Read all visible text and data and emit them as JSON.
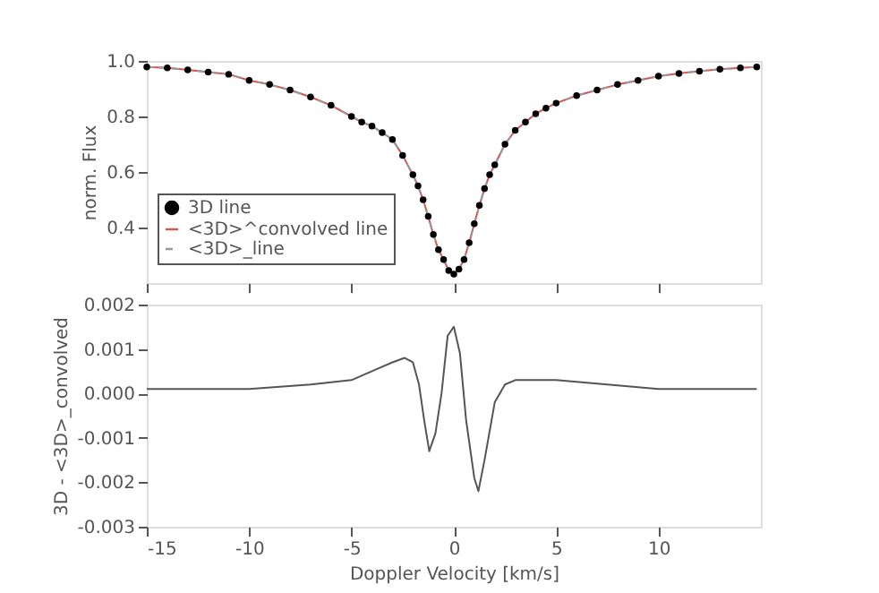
{
  "chart_data": [
    {
      "type": "line",
      "ylabel": "norm. Flux",
      "xlim": [
        -15,
        15
      ],
      "xticks": [
        -15,
        -10,
        -5,
        0,
        5,
        10
      ],
      "ylim": [
        0.2,
        1.0
      ],
      "yticks": [
        0.4,
        0.6,
        0.8,
        {
          "value": 1,
          "label": "1.0"
        }
      ],
      "tick_labels": "y",
      "grid": false,
      "legend": "bottom left",
      "x": [
        -15,
        -14,
        -13,
        -12,
        -11,
        -10,
        -9,
        -8,
        -7,
        -6,
        -5,
        -4.5,
        -4,
        -3.5,
        -3,
        -2.5,
        -2,
        -1.75,
        -1.5,
        -1.25,
        -1,
        -0.75,
        -0.5,
        -0.25,
        0,
        0.25,
        0.5,
        0.75,
        1,
        1.25,
        1.5,
        1.75,
        2,
        2.5,
        3,
        3.5,
        4,
        4.5,
        5,
        6,
        7,
        8,
        9,
        10,
        11,
        12,
        13,
        14,
        14.8
      ],
      "series": [
        {
          "name": "3D line",
          "type": "scatter",
          "marker": "circle",
          "color": "#000000",
          "values": [
            0.978,
            0.975,
            0.968,
            0.96,
            0.952,
            0.93,
            0.915,
            0.895,
            0.87,
            0.84,
            0.8,
            0.78,
            0.765,
            0.742,
            0.717,
            0.66,
            0.59,
            0.55,
            0.5,
            0.44,
            0.375,
            0.32,
            0.285,
            0.245,
            0.232,
            0.25,
            0.285,
            0.345,
            0.414,
            0.48,
            0.54,
            0.59,
            0.626,
            0.7,
            0.75,
            0.78,
            0.81,
            0.83,
            0.848,
            0.875,
            0.895,
            0.915,
            0.93,
            0.945,
            0.955,
            0.963,
            0.97,
            0.975,
            0.978
          ]
        },
        {
          "name": "<3D>^convolved line",
          "type": "line",
          "line_style": "solid",
          "color": "#d9534f",
          "values": [
            0.978,
            0.975,
            0.968,
            0.96,
            0.952,
            0.93,
            0.915,
            0.895,
            0.87,
            0.84,
            0.8,
            0.78,
            0.765,
            0.742,
            0.717,
            0.66,
            0.59,
            0.55,
            0.5,
            0.44,
            0.375,
            0.32,
            0.285,
            0.245,
            0.232,
            0.25,
            0.285,
            0.345,
            0.414,
            0.48,
            0.54,
            0.59,
            0.626,
            0.7,
            0.75,
            0.78,
            0.81,
            0.83,
            0.848,
            0.875,
            0.895,
            0.915,
            0.93,
            0.945,
            0.955,
            0.963,
            0.97,
            0.975,
            0.978
          ]
        },
        {
          "name": "<3D>_line",
          "type": "line",
          "line_style": "dashed",
          "color": "#999999",
          "values": [
            0.978,
            0.975,
            0.968,
            0.96,
            0.952,
            0.93,
            0.915,
            0.895,
            0.87,
            0.84,
            0.8,
            0.78,
            0.765,
            0.742,
            0.717,
            0.66,
            0.59,
            0.55,
            0.5,
            0.44,
            0.375,
            0.32,
            0.285,
            0.245,
            0.232,
            0.25,
            0.285,
            0.345,
            0.414,
            0.48,
            0.54,
            0.59,
            0.626,
            0.7,
            0.75,
            0.78,
            0.81,
            0.83,
            0.848,
            0.875,
            0.895,
            0.915,
            0.93,
            0.945,
            0.955,
            0.963,
            0.97,
            0.975,
            0.978
          ]
        }
      ]
    },
    {
      "type": "line",
      "xlabel": "Doppler Velocity [km/s]",
      "ylabel": "3D - <3D>_convolved",
      "xlim": [
        -15,
        15
      ],
      "xticks": [
        -15,
        -10,
        -5,
        0,
        5,
        10
      ],
      "ylim": [
        -0.003,
        0.002
      ],
      "yticks": [
        -0.003,
        -0.002,
        -0.001,
        {
          "value": 0,
          "label": "0.000"
        },
        0.001,
        0.002
      ],
      "grid": false,
      "legend": false,
      "x": [
        -15,
        -10,
        -7,
        -5,
        -4,
        -3,
        -2.4,
        -2,
        -1.7,
        -1.45,
        -1.2,
        -0.9,
        -0.6,
        -0.3,
        0,
        0.3,
        0.6,
        1.0,
        1.2,
        1.5,
        2,
        2.5,
        3,
        5,
        10,
        14.8
      ],
      "series": [
        {
          "type": "line",
          "line_style": "solid",
          "color": "#555555",
          "values": [
            0.0001,
            0.0001,
            0.0002,
            0.0003,
            0.0005,
            0.0007,
            0.0008,
            0.0007,
            0.0002,
            -0.0006,
            -0.0013,
            -0.0009,
            0.0,
            0.0013,
            0.0015,
            0.0009,
            -0.0006,
            -0.0019,
            -0.0022,
            -0.0015,
            -0.0002,
            0.0002,
            0.0003,
            0.0003,
            0.0001,
            0.0001
          ]
        }
      ]
    }
  ]
}
